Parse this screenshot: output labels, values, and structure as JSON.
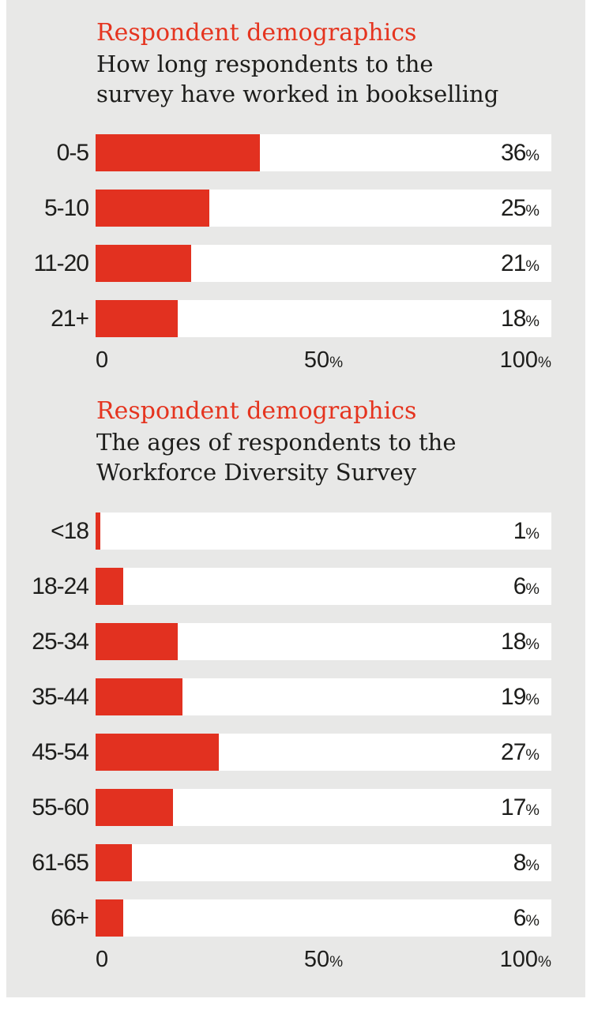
{
  "colors": {
    "panel_gray": "#e8e8e7",
    "page_white": "#ffffff",
    "accent_red": "#e23120",
    "kicker_red": "#e5341f",
    "text_dark": "#1d1d1b",
    "track_white": "#ffffff"
  },
  "ui": {
    "percent_sign": "%"
  },
  "chart_data": [
    {
      "type": "bar",
      "orientation": "horizontal",
      "kicker": "Respondent demographics",
      "title_lines": [
        "How long respondents to the",
        "survey have worked in bookselling"
      ],
      "categories": [
        "0-5",
        "5-10",
        "11-20",
        "21+"
      ],
      "values": [
        36,
        25,
        21,
        18
      ],
      "unit": "%",
      "xlim": [
        0,
        100
      ],
      "grid": false,
      "legend": "none",
      "x_ticks": [
        {
          "num": "0",
          "pct": ""
        },
        {
          "num": "50",
          "pct": "%"
        },
        {
          "num": "100",
          "pct": "%"
        }
      ]
    },
    {
      "type": "bar",
      "orientation": "horizontal",
      "kicker": "Respondent demographics",
      "title_lines": [
        "The ages of respondents to the",
        "Workforce Diversity Survey"
      ],
      "categories": [
        "<18",
        "18-24",
        "25-34",
        "35-44",
        "45-54",
        "55-60",
        "61-65",
        "66+"
      ],
      "values": [
        1,
        6,
        18,
        19,
        27,
        17,
        8,
        6
      ],
      "unit": "%",
      "xlim": [
        0,
        100
      ],
      "grid": false,
      "legend": "none",
      "x_ticks": [
        {
          "num": "0",
          "pct": ""
        },
        {
          "num": "50",
          "pct": "%"
        },
        {
          "num": "100",
          "pct": "%"
        }
      ]
    }
  ]
}
